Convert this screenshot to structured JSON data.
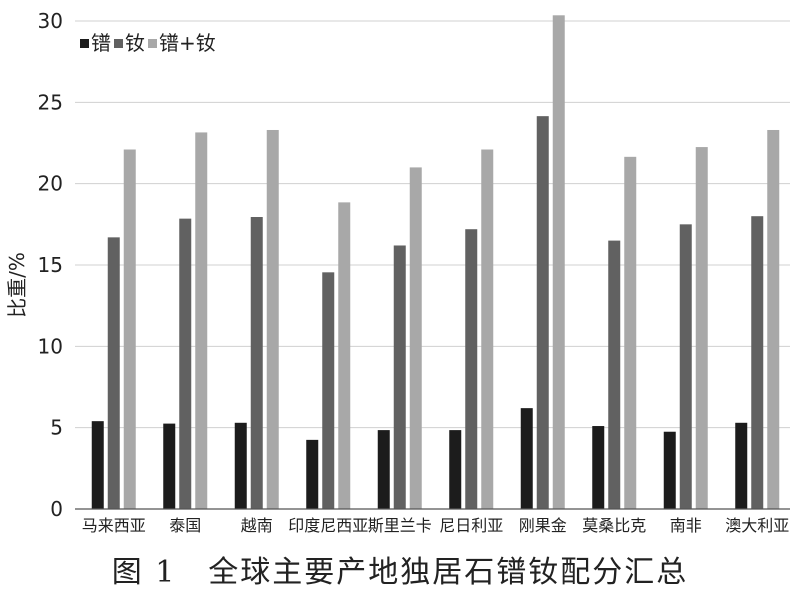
{
  "caption": "图 1　全球主要产地独居石镨钕配分汇总",
  "chart_data": {
    "type": "bar",
    "ylabel": "比重/%",
    "xlabel": "",
    "ylim": [
      0,
      30
    ],
    "yticks": [
      0,
      5,
      10,
      15,
      20,
      25,
      30
    ],
    "grid": true,
    "legend_position": "top-left",
    "categories": [
      "马来西亚",
      "泰国",
      "越南",
      "印度尼西亚",
      "斯里兰卡",
      "尼日利亚",
      "刚果金",
      "莫桑比克",
      "南非",
      "澳大利亚"
    ],
    "series": [
      {
        "name": "镨",
        "color": "#1c1c1c",
        "values": [
          5.4,
          5.25,
          5.3,
          4.25,
          4.85,
          4.85,
          6.2,
          5.1,
          4.75,
          5.3
        ]
      },
      {
        "name": "钕",
        "color": "#616161",
        "values": [
          16.7,
          17.85,
          17.95,
          14.55,
          16.2,
          17.2,
          24.15,
          16.5,
          17.5,
          18.0
        ]
      },
      {
        "name": "镨+钕",
        "color": "#a8a8a8",
        "values": [
          22.1,
          23.15,
          23.3,
          18.85,
          21.0,
          22.1,
          30.35,
          21.65,
          22.25,
          23.3
        ]
      }
    ]
  }
}
